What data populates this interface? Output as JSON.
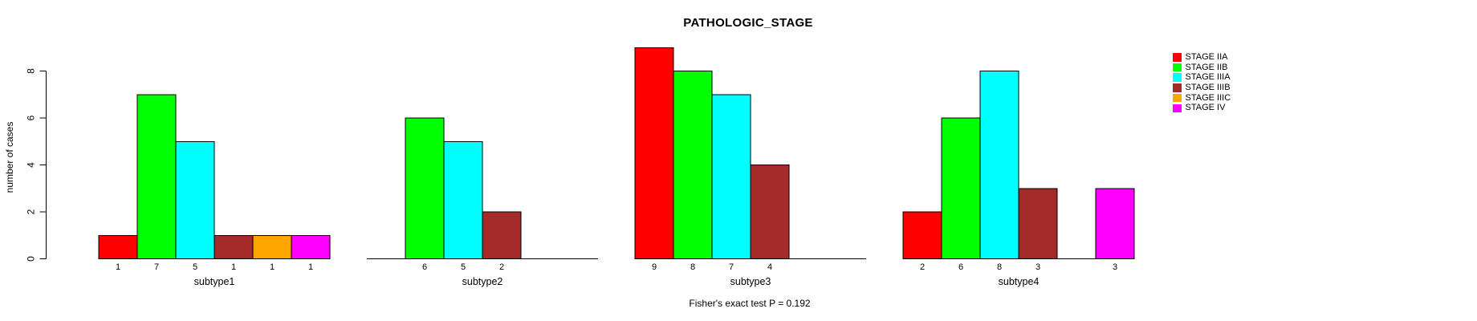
{
  "chart_data": {
    "type": "bar",
    "title": "PATHOLOGIC_STAGE",
    "ylabel": "number of cases",
    "xlabel": "",
    "annotation": "Fisher's exact test P = 0.192",
    "ylim": [
      0,
      9
    ],
    "yticks": [
      0,
      2,
      4,
      6,
      8
    ],
    "grid": "off",
    "legend_position": "right",
    "categories": [
      "STAGE IIA",
      "STAGE IIB",
      "STAGE IIIA",
      "STAGE IIIB",
      "STAGE IIIC",
      "STAGE IV"
    ],
    "colors": [
      "#ff0000",
      "#00ff00",
      "#00ffff",
      "#a52a2a",
      "#ffa500",
      "#ff00ff"
    ],
    "groups": [
      {
        "label": "subtype1",
        "values": [
          1,
          7,
          5,
          1,
          1,
          1
        ]
      },
      {
        "label": "subtype2",
        "values": [
          0,
          6,
          5,
          2,
          0,
          0
        ]
      },
      {
        "label": "subtype3",
        "values": [
          9,
          8,
          7,
          4,
          0,
          0
        ]
      },
      {
        "label": "subtype4",
        "values": [
          2,
          6,
          8,
          3,
          0,
          3
        ]
      }
    ],
    "bar_value_labels": "each nonzero bar is labeled with its count below the axis"
  },
  "axis_color": "#000000",
  "bar_border_color": "#000000"
}
